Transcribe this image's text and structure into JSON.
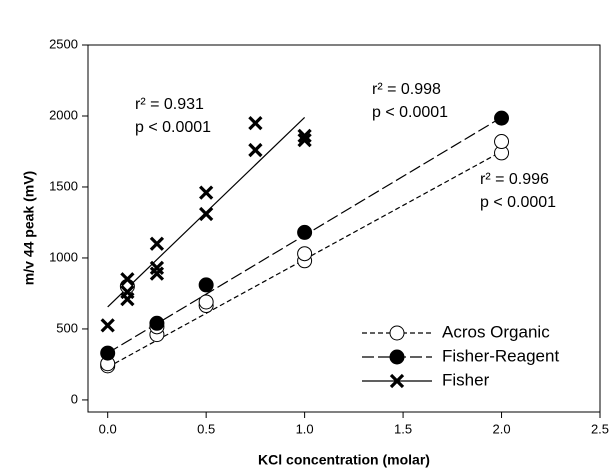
{
  "chart_data": {
    "type": "scatter",
    "x_label": "KCl concentration (molar)",
    "y_label": "m/v 44 peak (mV)",
    "xlim": [
      -0.1,
      2.5
    ],
    "ylim": [
      -85,
      2500
    ],
    "xticks": [
      {
        "value": 0,
        "label": "0.0"
      },
      {
        "value": 0.5,
        "label": "0.5"
      },
      {
        "value": 1,
        "label": "1.0"
      },
      {
        "value": 1.5,
        "label": "1.5"
      },
      {
        "value": 2,
        "label": "2.0"
      },
      {
        "value": 2.5,
        "label": "2.5"
      }
    ],
    "yticks": [
      0,
      500,
      1000,
      1500,
      2000,
      2500
    ],
    "legend": "lower right",
    "series": [
      {
        "name": "Acros Organic",
        "color": "#000000",
        "marker": "open-circle",
        "dash": "short",
        "x": [
          0,
          0,
          0.1,
          0.25,
          0.25,
          0.5,
          0.5,
          1,
          1,
          2,
          2
        ],
        "values": [
          240,
          255,
          800,
          460,
          515,
          665,
          690,
          980,
          1030,
          1740,
          1820
        ],
        "fit": {
          "x": [
            0,
            2
          ],
          "values": [
            230,
            1750
          ]
        }
      },
      {
        "name": "Fisher-Reagent",
        "color": "#000000",
        "marker": "filled-circle",
        "dash": "long",
        "x": [
          0,
          0.25,
          0.5,
          1,
          2
        ],
        "values": [
          330,
          540,
          810,
          1180,
          1985
        ],
        "fit": {
          "x": [
            0,
            2
          ],
          "values": [
            330,
            1990
          ]
        }
      },
      {
        "name": "Fisher",
        "color": "#000000",
        "marker": "x",
        "dash": "solid",
        "x": [
          0,
          0.1,
          0.1,
          0.1,
          0.25,
          0.25,
          0.25,
          0.5,
          0.5,
          0.75,
          0.75,
          1,
          1
        ],
        "values": [
          525,
          710,
          760,
          850,
          890,
          930,
          1100,
          1310,
          1460,
          1760,
          1950,
          1830,
          1860
        ],
        "fit": {
          "x": [
            0,
            1
          ],
          "values": [
            655,
            1990
          ]
        }
      }
    ],
    "annotations": [
      [
        "r² = 0.931",
        "p < 0.0001"
      ],
      [
        "r² = 0.998",
        "p < 0.0001"
      ],
      [
        "r² = 0.996",
        "p < 0.0001"
      ]
    ]
  }
}
